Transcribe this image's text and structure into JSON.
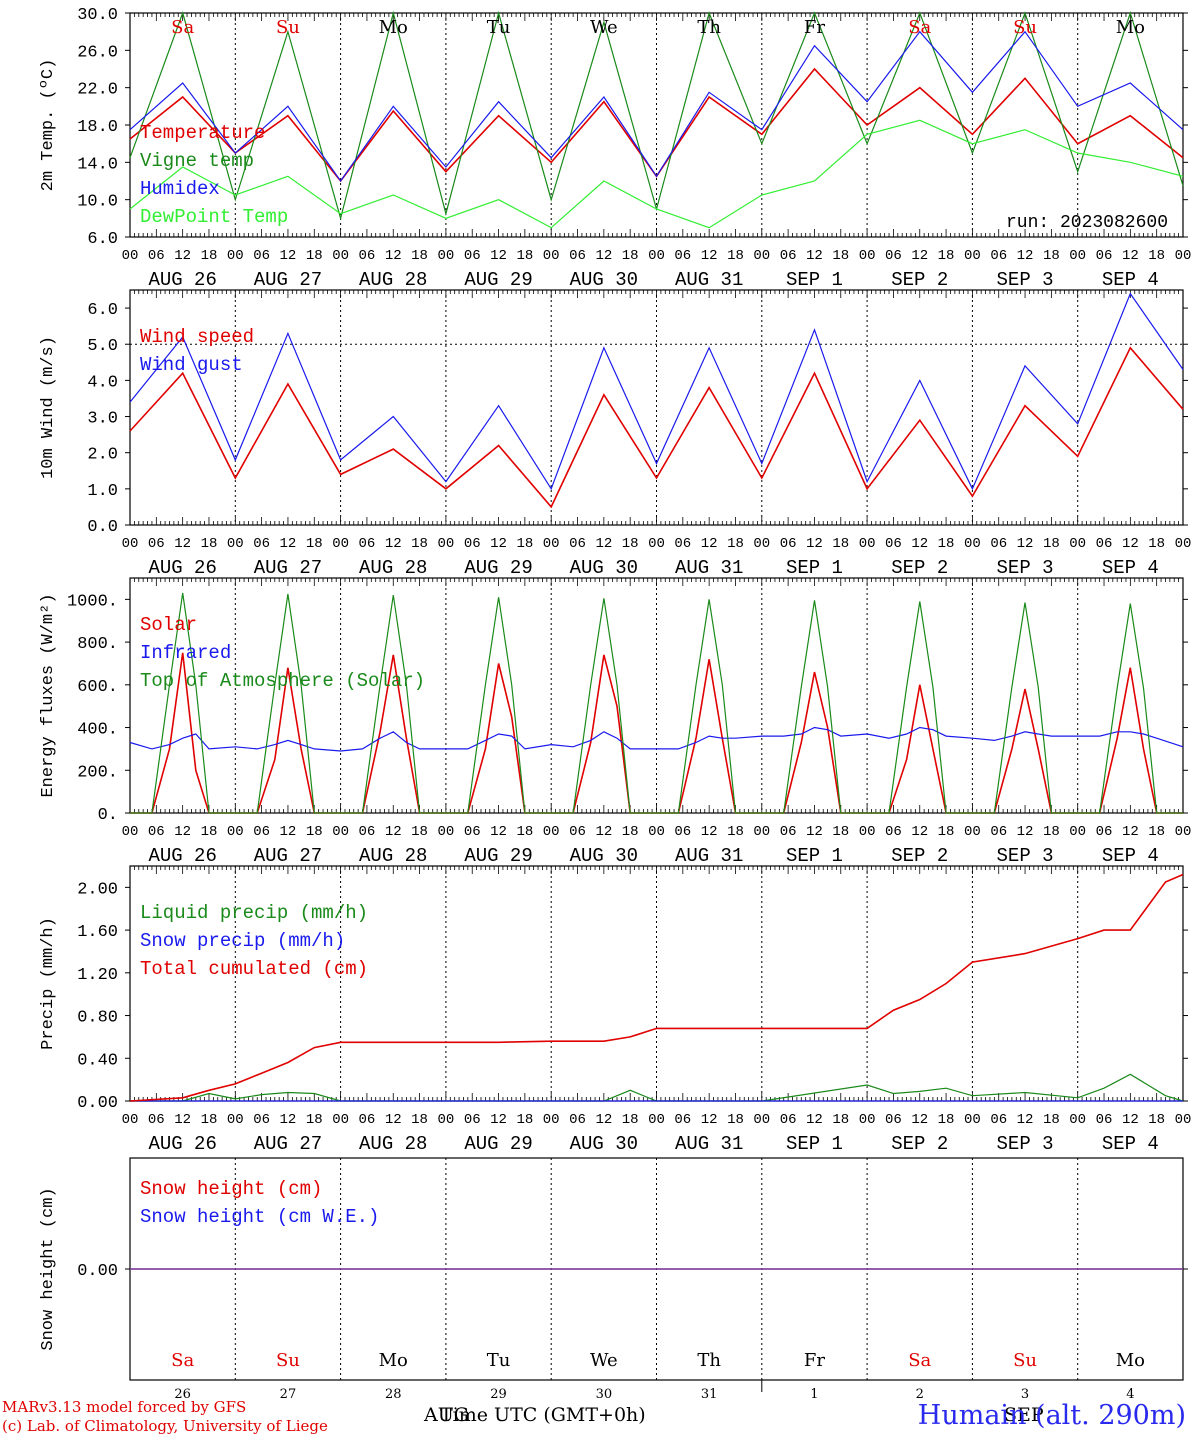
{
  "colors": {
    "red": "#e00000",
    "green": "#1a8a1a",
    "blue": "#1a1aee",
    "lightgreen": "#33ee33",
    "purple": "#7a3a9a"
  },
  "x_axis": {
    "hour_ticks": [
      "00",
      "06",
      "12",
      "18"
    ],
    "date_labels": [
      "AUG 26",
      "AUG 27",
      "AUG 28",
      "AUG 29",
      "AUG 30",
      "AUG 31",
      "SEP  1",
      "SEP  2",
      "SEP  3",
      "SEP  4"
    ],
    "weekdays": [
      "Sa",
      "Su",
      "Mo",
      "Tu",
      "We",
      "Th",
      "Fr",
      "Sa",
      "Su",
      "Mo"
    ],
    "weekday_colors": [
      "red",
      "red",
      "black",
      "black",
      "black",
      "black",
      "black",
      "red",
      "red",
      "black"
    ],
    "day_numbers": [
      "26",
      "27",
      "28",
      "29",
      "30",
      "31",
      "1",
      "2",
      "3",
      "4"
    ],
    "bottom_months": {
      "left": "AUG",
      "right": "SEP"
    },
    "title": "Time UTC (GMT+0h)"
  },
  "run_label": "run: 2023082600",
  "credits": {
    "line1": "MARv3.13 model forced by GFS",
    "line2": "(c) Lab. of Climatology, University of Liege"
  },
  "station": "Humain (alt. 290m)",
  "chart_data": [
    {
      "id": "temp",
      "type": "line",
      "ylabel": "2m Temp. (ºC)",
      "yticks": [
        "30.0",
        "26.0",
        "22.0",
        "18.0",
        "14.0",
        "10.0",
        "6.0"
      ],
      "ylim": [
        6,
        30
      ],
      "x_hours": [
        0,
        12,
        24,
        36,
        48,
        60,
        72,
        84,
        96,
        108,
        120,
        132,
        144,
        156,
        168,
        180,
        192,
        204,
        216,
        228,
        240
      ],
      "series": [
        {
          "name": "Temperature",
          "color": "red",
          "values": [
            16.5,
            21.0,
            15.0,
            19.0,
            12.0,
            19.5,
            13.0,
            19.0,
            14.0,
            20.5,
            12.5,
            21.0,
            17.0,
            24.0,
            18.0,
            22.0,
            17.0,
            23.0,
            16.0,
            19.0,
            14.5
          ]
        },
        {
          "name": "Vigne temp",
          "color": "green",
          "values": [
            14.5,
            30.0,
            10.0,
            28.0,
            8.0,
            30.0,
            8.5,
            30.0,
            10.0,
            29.0,
            9.0,
            30.0,
            16.0,
            30.0,
            16.0,
            30.0,
            15.0,
            30.0,
            13.0,
            30.0,
            11.5
          ]
        },
        {
          "name": "Humidex",
          "color": "blue",
          "values": [
            17.5,
            22.5,
            15.0,
            20.0,
            12.0,
            20.0,
            13.5,
            20.5,
            14.5,
            21.0,
            12.5,
            21.5,
            17.5,
            26.5,
            20.5,
            28.0,
            21.5,
            28.0,
            20.0,
            22.5,
            17.5
          ]
        },
        {
          "name": "DewPoint Temp",
          "color": "lightgreen",
          "values": [
            9.0,
            13.5,
            10.5,
            12.5,
            8.5,
            10.5,
            8.0,
            10.0,
            7.0,
            12.0,
            9.0,
            7.0,
            10.5,
            12.0,
            17.0,
            18.5,
            16.0,
            17.5,
            15.0,
            14.0,
            12.5
          ]
        }
      ]
    },
    {
      "id": "wind",
      "type": "line",
      "ylabel": "10m Wind (m/s)",
      "yticks": [
        "6.0",
        "5.0",
        "4.0",
        "3.0",
        "2.0",
        "1.0",
        "0.0"
      ],
      "ylim": [
        0,
        6.5
      ],
      "ref_line": 5.0,
      "x_hours": [
        0,
        12,
        24,
        36,
        48,
        60,
        72,
        84,
        96,
        108,
        120,
        132,
        144,
        156,
        168,
        180,
        192,
        204,
        216,
        228,
        240
      ],
      "series": [
        {
          "name": "Wind speed",
          "color": "red",
          "values": [
            2.6,
            4.2,
            1.3,
            3.9,
            1.4,
            2.1,
            1.0,
            2.2,
            0.5,
            3.6,
            1.3,
            3.8,
            1.3,
            4.2,
            1.0,
            2.9,
            0.8,
            3.3,
            1.9,
            4.9,
            3.2
          ]
        },
        {
          "name": "Wind gust",
          "color": "blue",
          "values": [
            3.4,
            5.2,
            1.8,
            5.3,
            1.8,
            3.0,
            1.2,
            3.3,
            1.0,
            4.9,
            1.7,
            4.9,
            1.7,
            5.4,
            1.2,
            4.0,
            1.0,
            4.4,
            2.8,
            6.4,
            4.3
          ]
        }
      ]
    },
    {
      "id": "energy",
      "type": "line",
      "ylabel": "Energy fluxes (W/m²)",
      "yticks": [
        "1000.",
        "800.",
        "600.",
        "400.",
        "200.",
        "0."
      ],
      "ylim": [
        0,
        1100
      ],
      "x_hours": [
        0,
        5,
        9,
        12,
        15,
        18,
        24,
        29,
        33,
        36,
        39,
        42,
        48,
        53,
        57,
        60,
        63,
        66,
        72,
        77,
        81,
        84,
        87,
        90,
        96,
        101,
        105,
        108,
        111,
        114,
        120,
        125,
        129,
        132,
        135,
        138,
        144,
        149,
        153,
        156,
        159,
        162,
        168,
        173,
        177,
        180,
        183,
        186,
        192,
        197,
        201,
        204,
        207,
        210,
        216,
        221,
        225,
        228,
        231,
        234,
        240
      ],
      "series": [
        {
          "name": "Solar",
          "color": "red",
          "values": [
            0,
            0,
            300,
            750,
            200,
            0,
            0,
            0,
            250,
            680,
            300,
            0,
            0,
            0,
            380,
            740,
            350,
            0,
            0,
            0,
            300,
            700,
            450,
            0,
            0,
            0,
            330,
            740,
            500,
            0,
            0,
            0,
            350,
            720,
            350,
            0,
            0,
            0,
            330,
            660,
            400,
            0,
            0,
            0,
            250,
            600,
            300,
            0,
            0,
            0,
            300,
            580,
            300,
            0,
            0,
            0,
            350,
            680,
            300,
            0,
            0
          ]
        },
        {
          "name": "Infrared",
          "color": "blue",
          "values": [
            330,
            300,
            320,
            350,
            370,
            300,
            310,
            300,
            320,
            340,
            320,
            300,
            290,
            300,
            350,
            380,
            330,
            300,
            300,
            300,
            340,
            370,
            360,
            300,
            320,
            310,
            340,
            380,
            350,
            300,
            300,
            300,
            330,
            360,
            350,
            350,
            360,
            360,
            370,
            400,
            390,
            360,
            370,
            350,
            370,
            400,
            390,
            360,
            350,
            340,
            360,
            380,
            370,
            360,
            360,
            360,
            380,
            380,
            370,
            350,
            310
          ]
        },
        {
          "name": "Top of Atmosphere (Solar)",
          "color": "green",
          "values": [
            0,
            0,
            600,
            1030,
            600,
            0,
            0,
            0,
            600,
            1025,
            600,
            0,
            0,
            0,
            600,
            1020,
            600,
            0,
            0,
            0,
            600,
            1010,
            600,
            0,
            0,
            0,
            600,
            1005,
            600,
            0,
            0,
            0,
            600,
            1000,
            600,
            0,
            0,
            0,
            590,
            995,
            590,
            0,
            0,
            0,
            590,
            990,
            590,
            0,
            0,
            0,
            590,
            985,
            590,
            0,
            0,
            0,
            585,
            980,
            585,
            0,
            0
          ]
        }
      ]
    },
    {
      "id": "precip",
      "type": "line",
      "ylabel": "Precip (mm/h)",
      "yticks": [
        "2.00",
        "1.60",
        "1.20",
        "0.80",
        "0.40",
        "0.00"
      ],
      "ylim": [
        0,
        2.2
      ],
      "x_hours": [
        0,
        12,
        18,
        24,
        30,
        36,
        42,
        48,
        60,
        72,
        84,
        96,
        108,
        114,
        120,
        132,
        144,
        168,
        174,
        180,
        186,
        192,
        204,
        216,
        222,
        228,
        236,
        240
      ],
      "series": [
        {
          "name": "Liquid precip (mm/h)",
          "color": "green",
          "values": [
            0,
            0,
            0.07,
            0.02,
            0.06,
            0.08,
            0.07,
            0,
            0,
            0,
            0,
            0,
            0,
            0.1,
            0,
            0,
            0,
            0.15,
            0.07,
            0.09,
            0.12,
            0.05,
            0.08,
            0.03,
            0.12,
            0.25,
            0.05,
            0
          ]
        },
        {
          "name": "Snow precip (mm/h)",
          "color": "blue",
          "values": [
            0,
            0,
            0,
            0,
            0,
            0,
            0,
            0,
            0,
            0,
            0,
            0,
            0,
            0,
            0,
            0,
            0,
            0,
            0,
            0,
            0,
            0,
            0,
            0,
            0,
            0,
            0,
            0
          ]
        },
        {
          "name": "Total cumulated (cm)",
          "color": "red",
          "values": [
            0,
            0.03,
            0.1,
            0.16,
            0.26,
            0.36,
            0.5,
            0.55,
            0.55,
            0.55,
            0.55,
            0.56,
            0.56,
            0.6,
            0.68,
            0.68,
            0.68,
            0.68,
            0.85,
            0.95,
            1.1,
            1.3,
            1.38,
            1.52,
            1.6,
            1.6,
            2.05,
            2.12
          ]
        }
      ]
    },
    {
      "id": "snow",
      "type": "line",
      "ylabel": "Snow height (cm)",
      "yticks": [
        "0.00"
      ],
      "ylim": [
        -1,
        1
      ],
      "x_hours": [
        0,
        240
      ],
      "series": [
        {
          "name": "Snow height (cm)",
          "color": "red",
          "values": [
            0,
            0
          ]
        },
        {
          "name": "Snow height (cm W.E.)",
          "color": "blue",
          "values": [
            0,
            0
          ]
        }
      ]
    }
  ]
}
